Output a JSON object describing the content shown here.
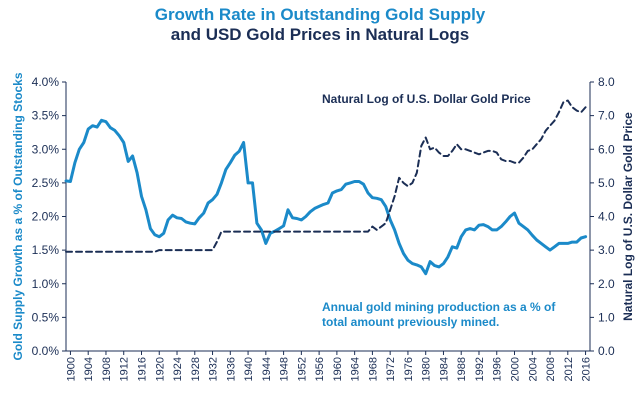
{
  "chart_data": {
    "type": "line",
    "title_line1": "Growth Rate in Outstanding Gold Supply",
    "title_line2": "and USD Gold Prices in Natural Logs",
    "left_axis_label": "Gold Supply Growth as a % of Outstanding Stocks",
    "right_axis_label": "Natural Log of U.S. Dollar Gold Price",
    "left_ylim": [
      0,
      4
    ],
    "right_ylim": [
      0,
      8
    ],
    "xlim": [
      1899,
      2017
    ],
    "left_ticks": [
      "0.0%",
      "0.5%",
      "1.0%",
      "1.5%",
      "2.0%",
      "2.5%",
      "3.0%",
      "3.5%",
      "4.0%"
    ],
    "right_ticks": [
      "0.0",
      "1.0",
      "2.0",
      "3.0",
      "4.0",
      "5.0",
      "6.0",
      "7.0",
      "8.0"
    ],
    "x_ticks": [
      "1900",
      "1904",
      "1908",
      "1912",
      "1916",
      "1920",
      "1924",
      "1928",
      "1932",
      "1936",
      "1940",
      "1944",
      "1948",
      "1952",
      "1956",
      "1960",
      "1964",
      "1968",
      "1972",
      "1976",
      "1980",
      "1984",
      "1988",
      "1992",
      "1996",
      "2000",
      "2004",
      "2008",
      "2012",
      "2016"
    ],
    "colors": {
      "title": "#1b8ac9",
      "growth": "#1b8ac9",
      "price": "#1b2e55",
      "axis": "#1b2e55"
    },
    "series": [
      {
        "name": "Annual gold mining production as a % of total amount previously mined.",
        "axis": "left",
        "style": "solid",
        "label_line1": "Annual gold mining production as a % of",
        "label_line2": "total amount previously mined.",
        "x": [
          1899,
          1900,
          1901,
          1902,
          1903,
          1904,
          1905,
          1906,
          1907,
          1908,
          1909,
          1910,
          1911,
          1912,
          1913,
          1914,
          1915,
          1916,
          1917,
          1918,
          1919,
          1920,
          1921,
          1922,
          1923,
          1924,
          1925,
          1926,
          1927,
          1928,
          1929,
          1930,
          1931,
          1932,
          1933,
          1934,
          1935,
          1936,
          1937,
          1938,
          1939,
          1940,
          1941,
          1942,
          1943,
          1944,
          1945,
          1946,
          1947,
          1948,
          1949,
          1950,
          1951,
          1952,
          1953,
          1954,
          1955,
          1956,
          1957,
          1958,
          1959,
          1960,
          1961,
          1962,
          1963,
          1964,
          1965,
          1966,
          1967,
          1968,
          1969,
          1970,
          1971,
          1972,
          1973,
          1974,
          1975,
          1976,
          1977,
          1978,
          1979,
          1980,
          1981,
          1982,
          1983,
          1984,
          1985,
          1986,
          1987,
          1988,
          1989,
          1990,
          1991,
          1992,
          1993,
          1994,
          1995,
          1996,
          1997,
          1998,
          1999,
          2000,
          2001,
          2002,
          2003,
          2004,
          2005,
          2006,
          2007,
          2008,
          2009,
          2010,
          2011,
          2012,
          2013,
          2014,
          2015,
          2016
        ],
        "values": [
          2.53,
          2.52,
          2.8,
          3.0,
          3.1,
          3.3,
          3.35,
          3.33,
          3.43,
          3.41,
          3.32,
          3.28,
          3.2,
          3.1,
          2.82,
          2.9,
          2.65,
          2.3,
          2.1,
          1.82,
          1.73,
          1.7,
          1.75,
          1.95,
          2.02,
          1.98,
          1.97,
          1.92,
          1.9,
          1.89,
          1.98,
          2.05,
          2.2,
          2.25,
          2.33,
          2.5,
          2.7,
          2.8,
          2.91,
          2.97,
          3.1,
          2.5,
          2.5,
          1.9,
          1.8,
          1.6,
          1.75,
          1.78,
          1.82,
          1.86,
          2.1,
          1.98,
          1.97,
          1.95,
          2.0,
          2.07,
          2.12,
          2.15,
          2.18,
          2.2,
          2.35,
          2.38,
          2.4,
          2.48,
          2.5,
          2.52,
          2.52,
          2.48,
          2.35,
          2.28,
          2.27,
          2.25,
          2.15,
          1.95,
          1.8,
          1.6,
          1.45,
          1.35,
          1.3,
          1.28,
          1.25,
          1.15,
          1.33,
          1.27,
          1.25,
          1.3,
          1.4,
          1.55,
          1.53,
          1.7,
          1.8,
          1.82,
          1.8,
          1.87,
          1.88,
          1.85,
          1.8,
          1.8,
          1.85,
          1.92,
          2.0,
          2.05,
          1.9,
          1.85,
          1.8,
          1.72,
          1.65,
          1.6,
          1.55,
          1.5,
          1.55,
          1.6,
          1.6,
          1.6,
          1.62,
          1.62,
          1.68,
          1.7
        ]
      },
      {
        "name": "Natural Log of U.S. Dollar Gold Price",
        "axis": "right",
        "style": "dashed",
        "x": [
          1899,
          1919,
          1920,
          1932,
          1933,
          1934,
          1940,
          1945,
          1946,
          1967,
          1968,
          1969,
          1970,
          1971,
          1972,
          1973,
          1974,
          1975,
          1976,
          1977,
          1978,
          1979,
          1980,
          1981,
          1982,
          1983,
          1984,
          1985,
          1986,
          1987,
          1988,
          1989,
          1990,
          1991,
          1992,
          1993,
          1994,
          1995,
          1996,
          1997,
          1998,
          1999,
          2000,
          2001,
          2002,
          2003,
          2004,
          2005,
          2006,
          2007,
          2008,
          2009,
          2010,
          2011,
          2012,
          2013,
          2014,
          2015,
          2016
        ],
        "values": [
          2.95,
          2.95,
          3.0,
          3.0,
          3.25,
          3.55,
          3.55,
          3.55,
          3.55,
          3.55,
          3.7,
          3.6,
          3.7,
          3.8,
          4.2,
          4.6,
          5.15,
          5.0,
          4.9,
          5.0,
          5.3,
          6.1,
          6.35,
          6.0,
          6.05,
          5.9,
          5.8,
          5.8,
          5.95,
          6.15,
          6.0,
          6.0,
          5.95,
          5.9,
          5.85,
          5.9,
          5.95,
          5.95,
          5.9,
          5.7,
          5.65,
          5.65,
          5.6,
          5.6,
          5.75,
          5.95,
          6.0,
          6.15,
          6.3,
          6.55,
          6.7,
          6.85,
          7.1,
          7.4,
          7.45,
          7.25,
          7.15,
          7.1,
          7.25
        ]
      }
    ]
  }
}
